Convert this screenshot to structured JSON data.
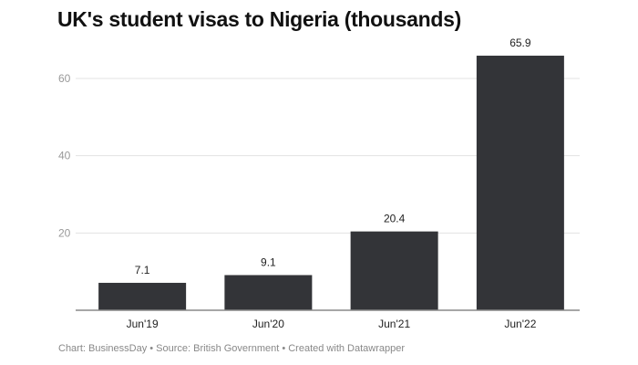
{
  "chart_data": {
    "type": "bar",
    "title": "UK's student visas to Nigeria (thousands)",
    "categories": [
      "Jun'19",
      "Jun'20",
      "Jun'21",
      "Jun'22"
    ],
    "values": [
      7.1,
      9.1,
      20.4,
      65.9
    ],
    "data_labels": [
      "7.1",
      "9.1",
      "20.4",
      "65.9"
    ],
    "yticks": [
      20,
      40,
      60
    ],
    "ylim": [
      0,
      66
    ],
    "grid": true,
    "bar_color": "#333438",
    "xlabel": "",
    "ylabel": ""
  },
  "footer": "Chart: BusinessDay • Source: British Government • Created with Datawrapper"
}
